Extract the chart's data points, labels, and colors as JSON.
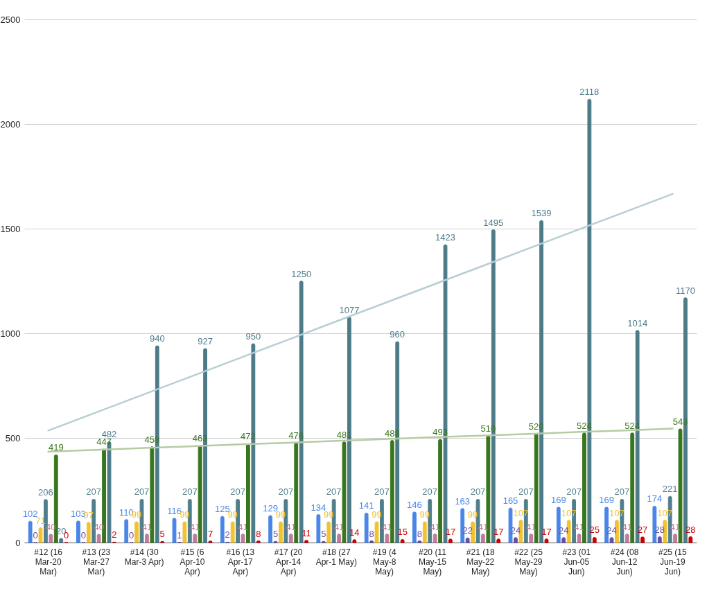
{
  "chart_data": {
    "type": "bar",
    "categories": [
      "#12 (16 Mar-20 Mar)",
      "#13 (23 Mar-27 Mar)",
      "#14 (30 Mar-3 Apr)",
      "#15 (6 Apr-10 Apr)",
      "#16 (13 Apr-17 Apr)",
      "#17 (20 Apr-14 Apr)",
      "#18 (27 Apr-1 May)",
      "#19 (4 May-8 May)",
      "#20 (11 May-15 May)",
      "#21 (18 May-22 May)",
      "#22 (25 May-29 May)",
      "#23 (01 Jun-05 Jun)",
      "#24 (08 Jun-12 Jun)",
      "#25 (15 Jun-19 Jun)"
    ],
    "series": [
      {
        "color": "#4a86e8",
        "values": [
          102,
          103,
          110,
          116,
          125,
          129,
          134,
          141,
          146,
          163,
          165,
          169,
          169,
          174
        ],
        "value_labels": [
          "102",
          "103",
          "110",
          "116",
          "125",
          "129",
          "134",
          "141",
          "146",
          "163",
          "165",
          "169",
          "169",
          "174"
        ]
      },
      {
        "color": "#674ea7",
        "values": [
          0,
          0,
          0,
          1,
          2,
          5,
          5,
          8,
          8,
          22,
          24,
          24,
          24,
          28
        ],
        "value_labels": [
          "0",
          "0",
          "0",
          "1",
          "2",
          "5",
          "5",
          "8",
          "8",
          "22",
          "24",
          "24",
          "24",
          "28"
        ]
      },
      {
        "color": "#f1c232",
        "values": [
          71,
          97,
          99,
          99,
          99,
          99,
          99,
          99,
          99,
          99,
          107,
          107,
          107,
          107
        ],
        "value_labels": [
          "71",
          "97",
          "99",
          "99",
          "99",
          "99",
          "99",
          "99",
          "99",
          "99",
          "107",
          "107",
          "107",
          "107"
        ]
      },
      {
        "color": "#4f7f8c",
        "values": [
          206,
          207,
          207,
          207,
          207,
          207,
          207,
          207,
          207,
          207,
          207,
          207,
          207,
          221
        ],
        "value_labels": [
          "206",
          "207",
          "207",
          "207",
          "207",
          "207",
          "207",
          "207",
          "207",
          "207",
          "207",
          "207",
          "207",
          "221"
        ]
      },
      {
        "color": "#c27ba0",
        "values": [
          40,
          40,
          41,
          41,
          41,
          41,
          41,
          41,
          41,
          41,
          41,
          41,
          41,
          41
        ],
        "value_labels": [
          "40",
          "40",
          "41",
          "41",
          "41",
          "41",
          "41",
          "41",
          "41",
          "41",
          "41",
          "41",
          "41",
          "41"
        ]
      },
      {
        "color": "#38761d",
        "values": [
          419,
          447,
          458,
          463,
          472,
          476,
          481,
          488,
          493,
          510,
          520,
          524,
          524,
          543
        ],
        "value_labels": [
          "419",
          "447",
          "458",
          "463",
          "472",
          "476",
          "481",
          "488",
          "493",
          "510",
          "520",
          "524",
          "524",
          "543"
        ]
      },
      {
        "color": "#4d7b89",
        "values": [
          20,
          482,
          940,
          927,
          950,
          1250,
          1077,
          960,
          1423,
          1495,
          1539,
          2118,
          1014,
          1170
        ],
        "value_labels": [
          "20",
          "482",
          "940",
          "927",
          "950",
          "1250",
          "1077",
          "960",
          "1423",
          "1495",
          "1539",
          "2118",
          "1014",
          "1170"
        ]
      },
      {
        "color": "#cc0000",
        "values": [
          0,
          2,
          5,
          7,
          8,
          11,
          14,
          15,
          17,
          17,
          17,
          25,
          27,
          28
        ],
        "value_labels": [
          "0",
          "2",
          "5",
          "7",
          "8",
          "11",
          "14",
          "15",
          "17",
          "17",
          "17",
          "25",
          "27",
          "28"
        ]
      },
      {
        "type": "line",
        "color": "#b7ced4",
        "values": [
          535,
          622,
          709,
          796,
          883,
          970,
          1057,
          1144,
          1231,
          1318,
          1405,
          1492,
          1579,
          1666
        ]
      },
      {
        "type": "line",
        "color": "#b6cba3",
        "values": [
          435,
          443,
          452,
          460,
          469,
          477,
          486,
          494,
          503,
          511,
          519,
          528,
          536,
          545
        ]
      }
    ],
    "ylim": [
      0,
      2500
    ],
    "yticks": [
      0,
      500,
      1000,
      1500,
      2000,
      2500
    ],
    "grid": true
  }
}
